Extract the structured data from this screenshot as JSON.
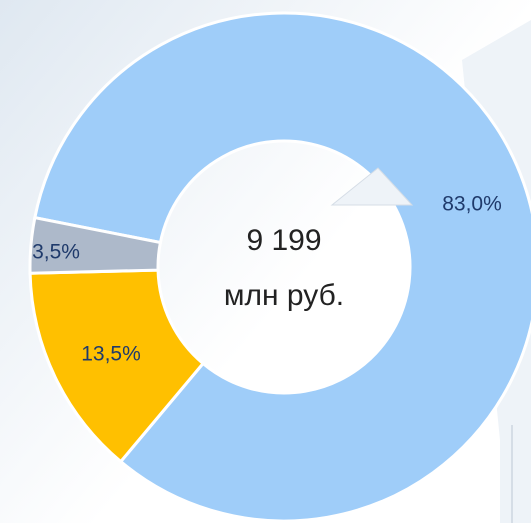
{
  "chart_data": {
    "type": "donut",
    "values": [
      83.0,
      13.5,
      3.5
    ],
    "value_labels": [
      "83,0%",
      "13,5%",
      "3,5%"
    ],
    "colors": [
      "#9fcdf9",
      "#ffc000",
      "#adb9ca"
    ],
    "center_text": [
      "9 199",
      "млн руб."
    ]
  }
}
